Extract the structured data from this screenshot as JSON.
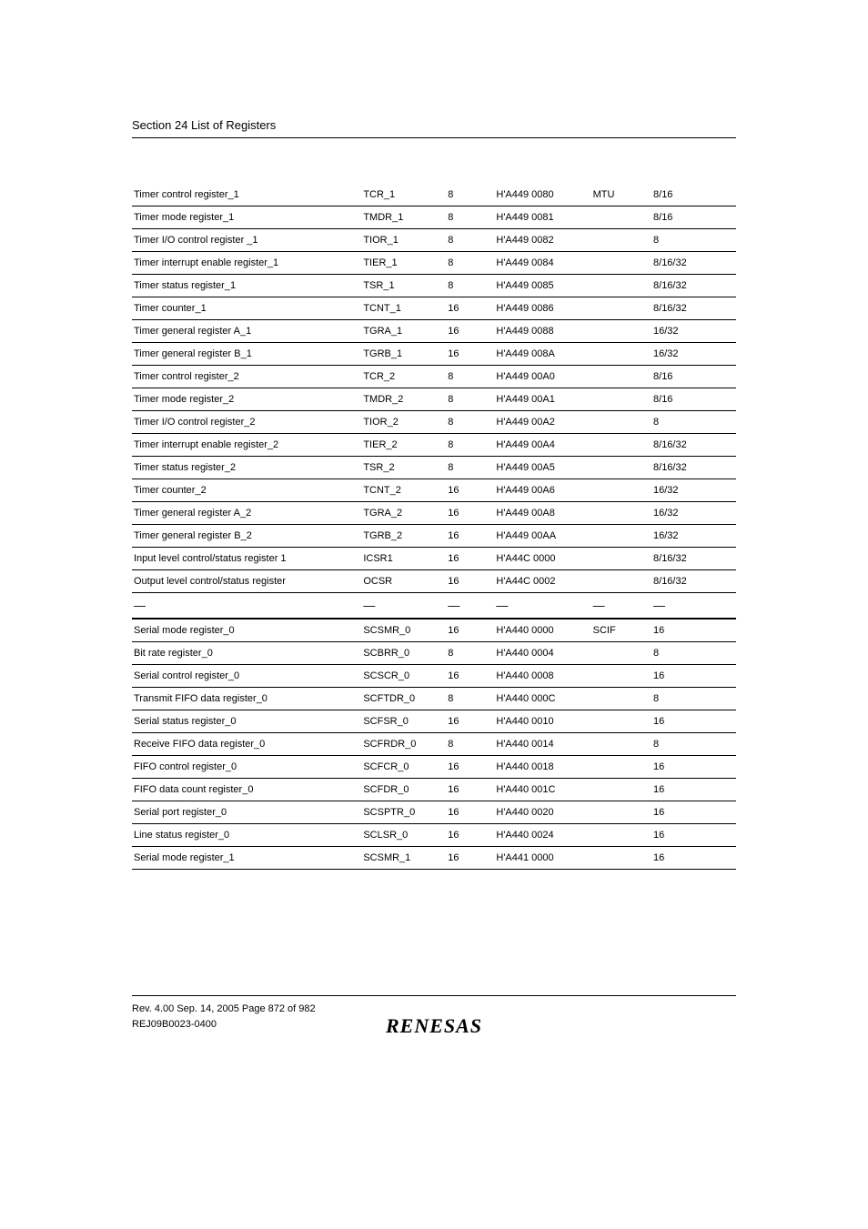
{
  "section_title": "Section 24   List of Registers",
  "table": {
    "rows": [
      {
        "name": "Timer control register_1",
        "abbr": "TCR_1",
        "bits": "8",
        "addr": "H'A449 0080",
        "mod": "MTU",
        "acc": "8/16"
      },
      {
        "name": "Timer mode register_1",
        "abbr": "TMDR_1",
        "bits": "8",
        "addr": "H'A449 0081",
        "mod": "",
        "acc": "8/16"
      },
      {
        "name": "Timer I/O control register _1",
        "abbr": "TIOR_1",
        "bits": "8",
        "addr": "H'A449 0082",
        "mod": "",
        "acc": "8"
      },
      {
        "name": "Timer interrupt enable register_1",
        "abbr": "TIER_1",
        "bits": "8",
        "addr": "H'A449 0084",
        "mod": "",
        "acc": "8/16/32"
      },
      {
        "name": "Timer status register_1",
        "abbr": "TSR_1",
        "bits": "8",
        "addr": "H'A449 0085",
        "mod": "",
        "acc": "8/16/32"
      },
      {
        "name": "Timer counter_1",
        "abbr": "TCNT_1",
        "bits": "16",
        "addr": "H'A449 0086",
        "mod": "",
        "acc": "8/16/32"
      },
      {
        "name": "Timer general register A_1",
        "abbr": "TGRA_1",
        "bits": "16",
        "addr": "H'A449 0088",
        "mod": "",
        "acc": "16/32"
      },
      {
        "name": "Timer general register B_1",
        "abbr": "TGRB_1",
        "bits": "16",
        "addr": "H'A449 008A",
        "mod": "",
        "acc": "16/32"
      },
      {
        "name": "Timer control register_2",
        "abbr": "TCR_2",
        "bits": "8",
        "addr": "H'A449 00A0",
        "mod": "",
        "acc": "8/16"
      },
      {
        "name": "Timer mode register_2",
        "abbr": "TMDR_2",
        "bits": "8",
        "addr": "H'A449 00A1",
        "mod": "",
        "acc": "8/16"
      },
      {
        "name": "Timer I/O control register_2",
        "abbr": "TIOR_2",
        "bits": "8",
        "addr": "H'A449 00A2",
        "mod": "",
        "acc": "8"
      },
      {
        "name": "Timer interrupt enable register_2",
        "abbr": "TIER_2",
        "bits": "8",
        "addr": "H'A449 00A4",
        "mod": "",
        "acc": "8/16/32"
      },
      {
        "name": "Timer status register_2",
        "abbr": "TSR_2",
        "bits": "8",
        "addr": "H'A449 00A5",
        "mod": "",
        "acc": "8/16/32"
      },
      {
        "name": "Timer counter_2",
        "abbr": "TCNT_2",
        "bits": "16",
        "addr": "H'A449 00A6",
        "mod": "",
        "acc": "16/32"
      },
      {
        "name": "Timer general register A_2",
        "abbr": "TGRA_2",
        "bits": "16",
        "addr": "H'A449 00A8",
        "mod": "",
        "acc": "16/32"
      },
      {
        "name": "Timer general register B_2",
        "abbr": "TGRB_2",
        "bits": "16",
        "addr": "H'A449 00AA",
        "mod": "",
        "acc": "16/32"
      },
      {
        "name": "Input level control/status register 1",
        "abbr": "ICSR1",
        "bits": "16",
        "addr": "H'A44C 0000",
        "mod": "",
        "acc": "8/16/32"
      },
      {
        "name": "Output level control/status register",
        "abbr": "OCSR",
        "bits": "16",
        "addr": "H'A44C 0002",
        "mod": "",
        "acc": "8/16/32"
      },
      {
        "name": "—",
        "abbr": "—",
        "bits": "—",
        "addr": "—",
        "mod": "—",
        "acc": "—",
        "dash": true,
        "heavy": true
      },
      {
        "name": "Serial mode register_0",
        "abbr": "SCSMR_0",
        "bits": "16",
        "addr": "H'A440 0000",
        "mod": "SCIF",
        "acc": "16"
      },
      {
        "name": "Bit rate register_0",
        "abbr": "SCBRR_0",
        "bits": "8",
        "addr": "H'A440 0004",
        "mod": "",
        "acc": "8"
      },
      {
        "name": "Serial control register_0",
        "abbr": "SCSCR_0",
        "bits": "16",
        "addr": "H'A440 0008",
        "mod": "",
        "acc": "16"
      },
      {
        "name": "Transmit FIFO data register_0",
        "abbr": "SCFTDR_0",
        "bits": "8",
        "addr": "H'A440 000C",
        "mod": "",
        "acc": "8"
      },
      {
        "name": "Serial status register_0",
        "abbr": "SCFSR_0",
        "bits": "16",
        "addr": "H'A440 0010",
        "mod": "",
        "acc": "16"
      },
      {
        "name": "Receive FIFO data register_0",
        "abbr": "SCFRDR_0",
        "bits": "8",
        "addr": "H'A440 0014",
        "mod": "",
        "acc": "8"
      },
      {
        "name": "FIFO control register_0",
        "abbr": "SCFCR_0",
        "bits": "16",
        "addr": "H'A440 0018",
        "mod": "",
        "acc": "16"
      },
      {
        "name": "FIFO data count register_0",
        "abbr": "SCFDR_0",
        "bits": "16",
        "addr": "H'A440 001C",
        "mod": "",
        "acc": "16"
      },
      {
        "name": "Serial port register_0",
        "abbr": "SCSPTR_0",
        "bits": "16",
        "addr": "H'A440 0020",
        "mod": "",
        "acc": "16"
      },
      {
        "name": "Line status register_0",
        "abbr": "SCLSR_0",
        "bits": "16",
        "addr": "H'A440 0024",
        "mod": "",
        "acc": "16"
      },
      {
        "name": "Serial mode register_1",
        "abbr": "SCSMR_1",
        "bits": "16",
        "addr": "H'A441 0000",
        "mod": "",
        "acc": "16"
      }
    ]
  },
  "footer": {
    "line1": "Rev. 4.00  Sep. 14, 2005  Page 872 of 982",
    "line2": "REJ09B0023-0400"
  },
  "logo_text": "RENESAS"
}
